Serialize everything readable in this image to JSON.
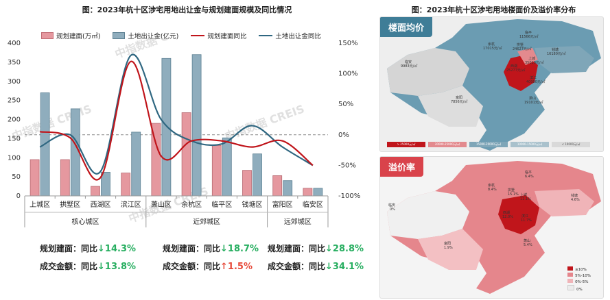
{
  "left_title": "图：2023年杭十区涉宅用地出让金与规划建面规模及同比情况",
  "right_title": "图：2023年杭十区涉宅用地楼面价及溢价率分布",
  "watermark": "中指数据 CREIS",
  "chart_data": {
    "type": "bar",
    "categories": [
      "上城区",
      "拱墅区",
      "西湖区",
      "滨江区",
      "萧山区",
      "余杭区",
      "临平区",
      "钱塘区",
      "富阳区",
      "临安区"
    ],
    "groups": [
      {
        "label": "核心城区",
        "start": 0,
        "end": 3
      },
      {
        "label": "近郊城区",
        "start": 4,
        "end": 7
      },
      {
        "label": "远郊城区",
        "start": 8,
        "end": 9
      }
    ],
    "left_axis": {
      "ylim": [
        0,
        400
      ],
      "ticks": [
        "0",
        "50",
        "100",
        "150",
        "200",
        "250",
        "300",
        "350",
        "400"
      ]
    },
    "right_axis": {
      "ylim": [
        -100,
        150
      ],
      "ticks": [
        "-100%",
        "-50%",
        "0%",
        "50%",
        "100%",
        "150%"
      ]
    },
    "series": [
      {
        "name": "规划建面(万㎡)",
        "kind": "bar",
        "axis": "left",
        "color": "#e5989f",
        "values": [
          95,
          95,
          25,
          60,
          190,
          218,
          132,
          67,
          53,
          20
        ]
      },
      {
        "name": "土地出让金(亿元)",
        "kind": "bar",
        "axis": "left",
        "color": "#8fadbd",
        "values": [
          270,
          228,
          62,
          167,
          360,
          370,
          152,
          110,
          40,
          20
        ]
      },
      {
        "name": "规划建面同比",
        "kind": "line",
        "axis": "right",
        "color": "#c0151b",
        "values": [
          5,
          -5,
          -70,
          120,
          -35,
          -10,
          -10,
          -20,
          -10,
          -50
        ]
      },
      {
        "name": "土地出让金同比",
        "kind": "line",
        "axis": "right",
        "color": "#2f6781",
        "values": [
          -20,
          0,
          -60,
          130,
          25,
          -10,
          -15,
          15,
          -20,
          -50
        ]
      }
    ]
  },
  "stats": [
    {
      "line1_label": "规划建面：同比",
      "line1_arrow": "↓",
      "line1_value": "14.3%",
      "line1_dir": "down",
      "line2_label": "成交金额：同比",
      "line2_arrow": "↓",
      "line2_value": "13.8%",
      "line2_dir": "down"
    },
    {
      "line1_label": "规划建面：同比",
      "line1_arrow": "↓",
      "line1_value": "18.7%",
      "line1_dir": "down",
      "line2_label": "成交金额：同比",
      "line2_arrow": "↑",
      "line2_value": "1.5%",
      "line2_dir": "up"
    },
    {
      "line1_label": "规划建面：同比",
      "line1_arrow": "↓",
      "line1_value": "28.8%",
      "line1_dir": "down",
      "line2_label": "成交金额：同比",
      "line2_arrow": "↓",
      "line2_value": "34.1%",
      "line2_dir": "down"
    }
  ],
  "map_top": {
    "tag": "楼面均价",
    "tag_color": "#3f7d97",
    "labels": [
      {
        "name": "临平",
        "value": "11566元/㎡"
      },
      {
        "name": "余杭",
        "value": "17015元/㎡"
      },
      {
        "name": "拱墅",
        "value": "24627元/㎡"
      },
      {
        "name": "钱塘",
        "value": "16180元/㎡"
      },
      {
        "name": "临安",
        "value": "9983元/㎡"
      },
      {
        "name": "西湖",
        "value": "25277元/㎡"
      },
      {
        "name": "上城",
        "value": "35010元/㎡"
      },
      {
        "name": "滨江",
        "value": "40000元/㎡"
      },
      {
        "name": "萧山",
        "value": "19101元/㎡"
      },
      {
        "name": "富阳",
        "value": "7856元/㎡"
      }
    ],
    "legend": [
      "> 25000元/㎡",
      "20000-25000元/㎡",
      "15000-20000元/㎡",
      "10000-15000元/㎡",
      "< 10000元/㎡"
    ],
    "legend_colors": [
      "#c0151b",
      "#e38a8e",
      "#7fa6b8",
      "#a9c1cc",
      "#d9d9d9"
    ]
  },
  "map_bottom": {
    "tag": "溢价率",
    "tag_color": "#d9434b",
    "labels": [
      {
        "name": "临平",
        "value": "6.4%"
      },
      {
        "name": "余杭",
        "value": "8.4%"
      },
      {
        "name": "拱墅",
        "value": "15.1%"
      },
      {
        "name": "上城",
        "value": "11.1%"
      },
      {
        "name": "钱塘",
        "value": "4.6%"
      },
      {
        "name": "临安",
        "value": "0%"
      },
      {
        "name": "西湖",
        "value": "12.0%"
      },
      {
        "name": "滨江",
        "value": "11.7%"
      },
      {
        "name": "萧山",
        "value": "5.4%"
      },
      {
        "name": "富阳",
        "value": "1.9%"
      }
    ],
    "legend": [
      "≥10%",
      "5%-10%",
      "0%-5%",
      "0%"
    ],
    "legend_colors": [
      "#c0151b",
      "#e5868c",
      "#f0b4b8",
      "#ececec"
    ]
  }
}
